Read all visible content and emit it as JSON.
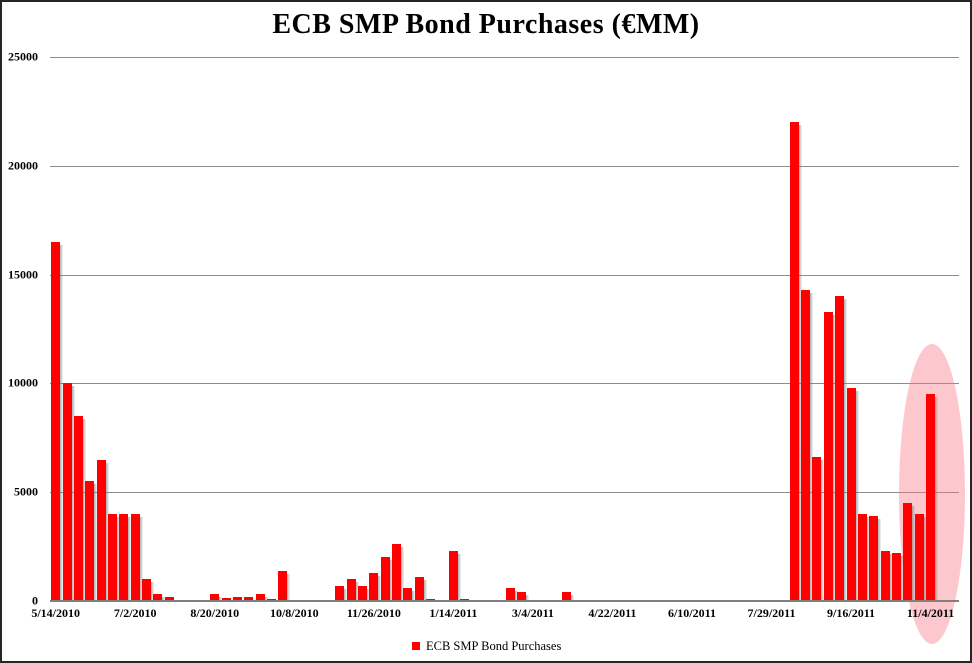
{
  "title": "ECB SMP Bond Purchases (€MM)",
  "legend": {
    "label": "ECB SMP Bond Purchases",
    "swatch_color": "#ff0000"
  },
  "colors": {
    "bar": "#ff0000",
    "gridline": "#8c8c8c",
    "axis_line": "#7f7f7f",
    "highlight_ellipse": "rgba(249,118,130,0.40)",
    "text": "#000000",
    "background": "#ffffff"
  },
  "chart_data": {
    "type": "bar",
    "title": "ECB SMP Bond Purchases (€MM)",
    "xlabel": "",
    "ylabel": "",
    "ylim": [
      0,
      25000
    ],
    "yticks": [
      0,
      5000,
      10000,
      15000,
      20000,
      25000
    ],
    "grid": "horizontal",
    "legend_position": "bottom-center",
    "n_slots": 80,
    "x_period": "weekly",
    "x_tick_labels": [
      {
        "index": 0,
        "label": "5/14/2010"
      },
      {
        "index": 7,
        "label": "7/2/2010"
      },
      {
        "index": 14,
        "label": "8/20/2010"
      },
      {
        "index": 21,
        "label": "10/8/2010"
      },
      {
        "index": 28,
        "label": "11/26/2010"
      },
      {
        "index": 35,
        "label": "1/14/2011"
      },
      {
        "index": 42,
        "label": "3/4/2011"
      },
      {
        "index": 49,
        "label": "4/22/2011"
      },
      {
        "index": 56,
        "label": "6/10/2011"
      },
      {
        "index": 63,
        "label": "7/29/2011"
      },
      {
        "index": 70,
        "label": "9/16/2011"
      },
      {
        "index": 77,
        "label": "11/4/2011"
      }
    ],
    "series": [
      {
        "name": "ECB SMP Bond Purchases",
        "values": [
          16500,
          10000,
          8500,
          5500,
          6500,
          4000,
          4000,
          4000,
          1000,
          300,
          200,
          0,
          0,
          0,
          300,
          150,
          200,
          200,
          300,
          100,
          1400,
          0,
          0,
          0,
          0,
          700,
          1000,
          700,
          1300,
          2000,
          2600,
          600,
          1100,
          100,
          0,
          2300,
          100,
          0,
          0,
          0,
          600,
          400,
          0,
          0,
          0,
          400,
          0,
          0,
          0,
          0,
          0,
          0,
          0,
          0,
          0,
          0,
          0,
          0,
          0,
          0,
          0,
          0,
          0,
          0,
          0,
          22000,
          14300,
          6600,
          13300,
          14000,
          9800,
          4000,
          3900,
          2300,
          2200,
          4500,
          4000,
          9500,
          0,
          0
        ]
      }
    ],
    "annotation": {
      "shape": "ellipse",
      "highlights": "final weeks around 11/4/2011",
      "center_slot_index": 77,
      "color": "rgba(249,118,130,0.40)"
    }
  }
}
